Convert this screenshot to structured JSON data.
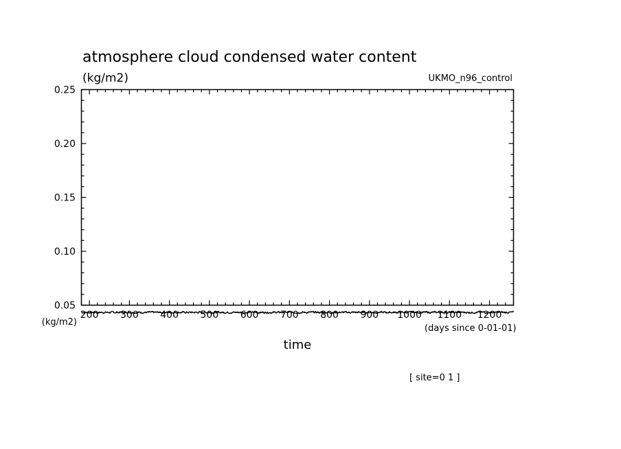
{
  "chart_data": {
    "type": "line",
    "title": "atmosphere cloud condensed water content",
    "ylabel": "(kg/m2)",
    "xlabel": "time",
    "x_units": "(days since 0-01-01)",
    "series_units_label": "(kg/m2)",
    "model_label": "UKMO_n96_control",
    "site_label": "[ site=0 1 ]",
    "xlim": [
      180,
      1260
    ],
    "ylim": [
      0.05,
      0.25
    ],
    "xticks": [
      200,
      300,
      400,
      500,
      600,
      700,
      800,
      900,
      1000,
      1100,
      1200
    ],
    "yticks": [
      0.05,
      0.1,
      0.15,
      0.2,
      0.25
    ],
    "ytick_labels": [
      "0.05",
      "0.10",
      "0.15",
      "0.20",
      "0.25"
    ],
    "grid": false,
    "series": [
      {
        "x": [
          180,
          1260
        ],
        "y": [
          0.0433,
          0.0433
        ]
      }
    ]
  }
}
